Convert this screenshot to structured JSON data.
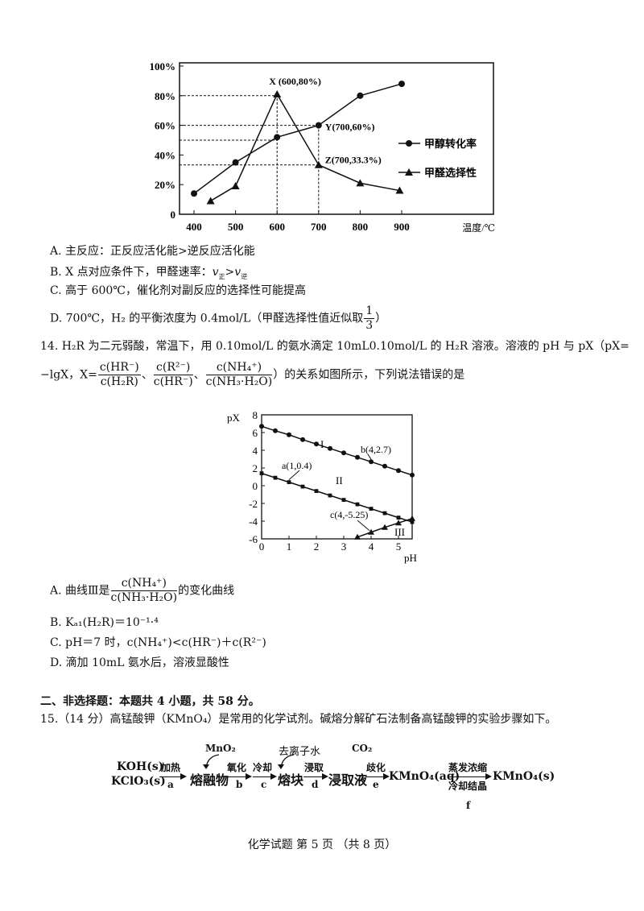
{
  "q13_options": {
    "A": "A. 主反应：正反应活化能>逆反应活化能",
    "B_prefix": "B. X 点对应条件下，甲醛速率：",
    "B_v1": "v",
    "B_sub1": "正",
    "B_gt": ">",
    "B_v2": "v",
    "B_sub2": "逆",
    "C": "C. 高于 600℃，催化剂对副反应的选择性可能提高",
    "D_prefix": "D. 700℃，H₂ 的平衡浓度为 0.4mol/L（甲醛选择性值近似取",
    "D_num": "1",
    "D_den": "3",
    "D_suffix": "）"
  },
  "q14": {
    "line1": "14. H₂R 为二元弱酸，常温下，用 0.10mol/L 的氨水滴定 10mL0.10mol/L 的 H₂R 溶液。溶液的 pH 与 pX（pX=",
    "line2_prefix": "−lgX，X=",
    "f1_num": "c(HR⁻)",
    "f1_den": "c(H₂R)",
    "f2_num": "c(R²⁻)",
    "f2_den": "c(HR⁻)",
    "f3_num": "c(NH₄⁺)",
    "f3_den": "c(NH₃·H₂O)",
    "sep": "、",
    "line2_suffix": "）的关系如图所示，下列说法错误的是",
    "A_prefix": "A. 曲线Ⅲ是",
    "A_num": "c(NH₄⁺)",
    "A_den": "c(NH₃·H₂O)",
    "A_suffix": "的变化曲线",
    "B": "B. Kₐ₁(H₂R)＝10⁻¹·⁴",
    "C": "C. pH＝7 时，c(NH₄⁺)<c(HR⁻)＋c(R²⁻)",
    "D": "D. 滴加 10mL 氨水后，溶液显酸性"
  },
  "section2": "二、非选择题：本题共 4 小题，共 58 分。",
  "q15": "15.（14 分）高锰酸钾（KMnO₄）是常用的化学试剂。碱熔分解矿石法制备高锰酸钾的实验步骤如下。",
  "flow": {
    "reactant1": "KOH(s)",
    "reactant2": "KClO₃(s)",
    "step_a_top": "加热",
    "step_a": "a",
    "melt": "熔融物",
    "mno2": "MnO₂",
    "step_b_top": "氧化",
    "step_b": "b",
    "step_c_top": "冷却",
    "step_c": "c",
    "block": "熔块",
    "water": "去离子水",
    "step_d_top": "浸取",
    "step_d": "d",
    "leachate": "浸取液",
    "co2": "CO₂",
    "step_e_top": "歧化",
    "step_e": "e",
    "kmno4_aq": "KMnO₄(aq)",
    "step_f_top": "蒸发浓缩",
    "step_f_bottom": "冷却结晶",
    "step_f": "f",
    "kmno4_s": "KMnO₄(s)"
  },
  "footer": "化学试题 第 5 页 （共 8 页）",
  "chart_data": [
    {
      "type": "line",
      "xlabel": "温度/℃",
      "x_ticks": [
        "400",
        "500",
        "600",
        "700",
        "800",
        "900"
      ],
      "y_ticks": [
        "0",
        "20%",
        "40%",
        "60%",
        "80%",
        "100%"
      ],
      "xlim": [
        400,
        900
      ],
      "ylim": [
        0,
        100
      ],
      "grid": false,
      "legend_position": "right",
      "series": [
        {
          "name": "甲醇转化率",
          "marker": "circle",
          "x": [
            400,
            500,
            600,
            700,
            800,
            900
          ],
          "y": [
            14,
            35,
            52,
            60,
            80,
            88
          ]
        },
        {
          "name": "甲醛选择性",
          "marker": "triangle",
          "x": [
            440,
            500,
            600,
            700,
            800,
            895
          ],
          "y": [
            9,
            19,
            81,
            33.3,
            21,
            16
          ]
        }
      ],
      "annotations": [
        {
          "text": "X (600,80%)",
          "x": 600,
          "y": 80
        },
        {
          "text": "Y(700,60%)",
          "x": 700,
          "y": 60
        },
        {
          "text": "Z(700,33.3%)",
          "x": 700,
          "y": 33.3
        }
      ],
      "reference_lines": [
        {
          "y": 80,
          "to_x": 600
        },
        {
          "y": 60,
          "to_x": 700
        },
        {
          "y": 50,
          "to_x": 600
        },
        {
          "y": 33.3,
          "to_x": 700
        },
        {
          "x": 600
        },
        {
          "x": 700
        }
      ]
    },
    {
      "type": "line",
      "xlabel": "pH",
      "ylabel": "pX",
      "x_ticks": [
        "0",
        "1",
        "2",
        "3",
        "4",
        "5"
      ],
      "y_ticks": [
        "-6",
        "-4",
        "-2",
        "0",
        "2",
        "4",
        "6",
        "8"
      ],
      "xlim": [
        0,
        5.5
      ],
      "ylim": [
        -6,
        8
      ],
      "grid": false,
      "series": [
        {
          "name": "I",
          "marker": "circle",
          "x": [
            0,
            0.5,
            1,
            1.5,
            2,
            2.5,
            3,
            3.5,
            4,
            4.5,
            5,
            5.5
          ],
          "y": [
            6.7,
            6.2,
            5.75,
            5.2,
            4.7,
            4.2,
            3.7,
            3.2,
            2.7,
            2.2,
            1.7,
            1.2
          ]
        },
        {
          "name": "II",
          "marker": "square",
          "x": [
            0,
            0.5,
            1,
            1.5,
            2,
            2.5,
            3,
            3.5,
            4,
            4.5,
            5,
            5.5
          ],
          "y": [
            1.4,
            0.9,
            0.4,
            -0.1,
            -0.6,
            -1.1,
            -1.6,
            -2.1,
            -2.6,
            -3.1,
            -3.6,
            -4.1
          ]
        },
        {
          "name": "III",
          "marker": "triangle",
          "x": [
            3.5,
            4,
            4.5,
            5,
            5.5
          ],
          "y": [
            -5.8,
            -5.25,
            -4.7,
            -4.2,
            -3.7
          ]
        }
      ],
      "annotations": [
        {
          "text": "a(1,0.4)",
          "x": 1,
          "y": 0.4
        },
        {
          "text": "b(4,2.7)",
          "x": 4,
          "y": 2.7
        },
        {
          "text": "c(4,-5.25)",
          "x": 4,
          "y": -5.25
        }
      ]
    }
  ]
}
